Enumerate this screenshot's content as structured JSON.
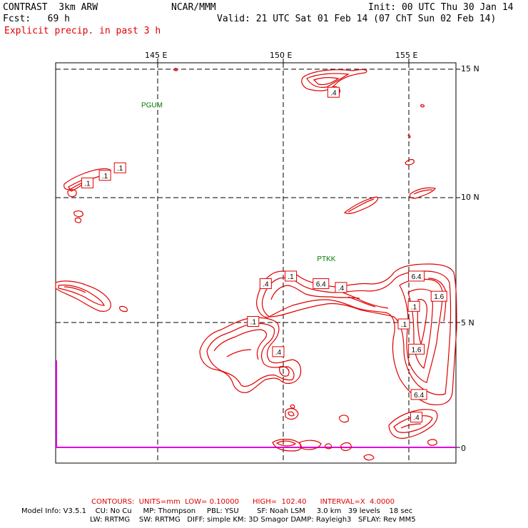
{
  "header": {
    "model": "CONTRAST  3km ARW",
    "org": "NCAR/MMM",
    "init": "Init: 00 UTC Thu 30 Jan 14",
    "fcst": "Fcst:   69 h",
    "valid": "Valid: 21 UTC Sat 01 Feb 14 (07 ChT Sun 02 Feb 14)",
    "field": "Explicit precip. in past 3 h"
  },
  "axes": {
    "lon_labels": [
      "145 E",
      "150 E",
      "155 E"
    ],
    "lat_labels": [
      "15 N",
      "10 N",
      "5 N",
      "0"
    ]
  },
  "stations": [
    {
      "label": "PGUM",
      "lon": 144.8,
      "lat": 13.5
    },
    {
      "label": "PTKK",
      "lon": 151.8,
      "lat": 7.4
    }
  ],
  "contour_labels": [
    {
      "text": ".4",
      "lon": 152.0,
      "lat": 14.1
    },
    {
      "text": ".1",
      "lon": 143.5,
      "lat": 11.1
    },
    {
      "text": ".1",
      "lon": 142.9,
      "lat": 10.8
    },
    {
      "text": ".1",
      "lon": 142.2,
      "lat": 10.5
    },
    {
      "text": ".1",
      "lon": 150.3,
      "lat": 6.8
    },
    {
      "text": ".4",
      "lon": 149.3,
      "lat": 6.5
    },
    {
      "text": "6.4",
      "lon": 151.5,
      "lat": 6.5
    },
    {
      "text": ".4",
      "lon": 152.3,
      "lat": 6.35
    },
    {
      "text": "6.4",
      "lon": 155.3,
      "lat": 6.8
    },
    {
      "text": "1.6",
      "lon": 156.2,
      "lat": 6.0
    },
    {
      "text": ".1",
      "lon": 155.2,
      "lat": 5.6
    },
    {
      "text": ".1",
      "lon": 148.8,
      "lat": 5.0
    },
    {
      "text": ".1",
      "lon": 154.8,
      "lat": 4.9
    },
    {
      "text": ".4",
      "lon": 149.8,
      "lat": 3.8
    },
    {
      "text": "1.6",
      "lon": 155.3,
      "lat": 3.9
    },
    {
      "text": "6.4",
      "lon": 155.4,
      "lat": 2.1
    },
    {
      "text": ".4",
      "lon": 155.3,
      "lat": 1.2
    }
  ],
  "footer": {
    "contours": "CONTOURS:  UNITS=mm  LOW= 0.10000      HIGH=  102.40      INTERVAL=X  4.0000",
    "model_info_1": "Model Info: V3.5.1    CU: No Cu     MP: Thompson     PBL: YSU        SF: Noah LSM     3.0 km   39 levels    18 sec",
    "model_info_2": "LW: RRTMG    SW: RRTMG   DIFF: simple KM: 3D Smagor DAMP: Rayleigh3   SFLAY: Rev MM5"
  },
  "colors": {
    "contour": "#e00000",
    "station": "#007700",
    "boundary": "#e000e0",
    "grid": "#000000"
  }
}
